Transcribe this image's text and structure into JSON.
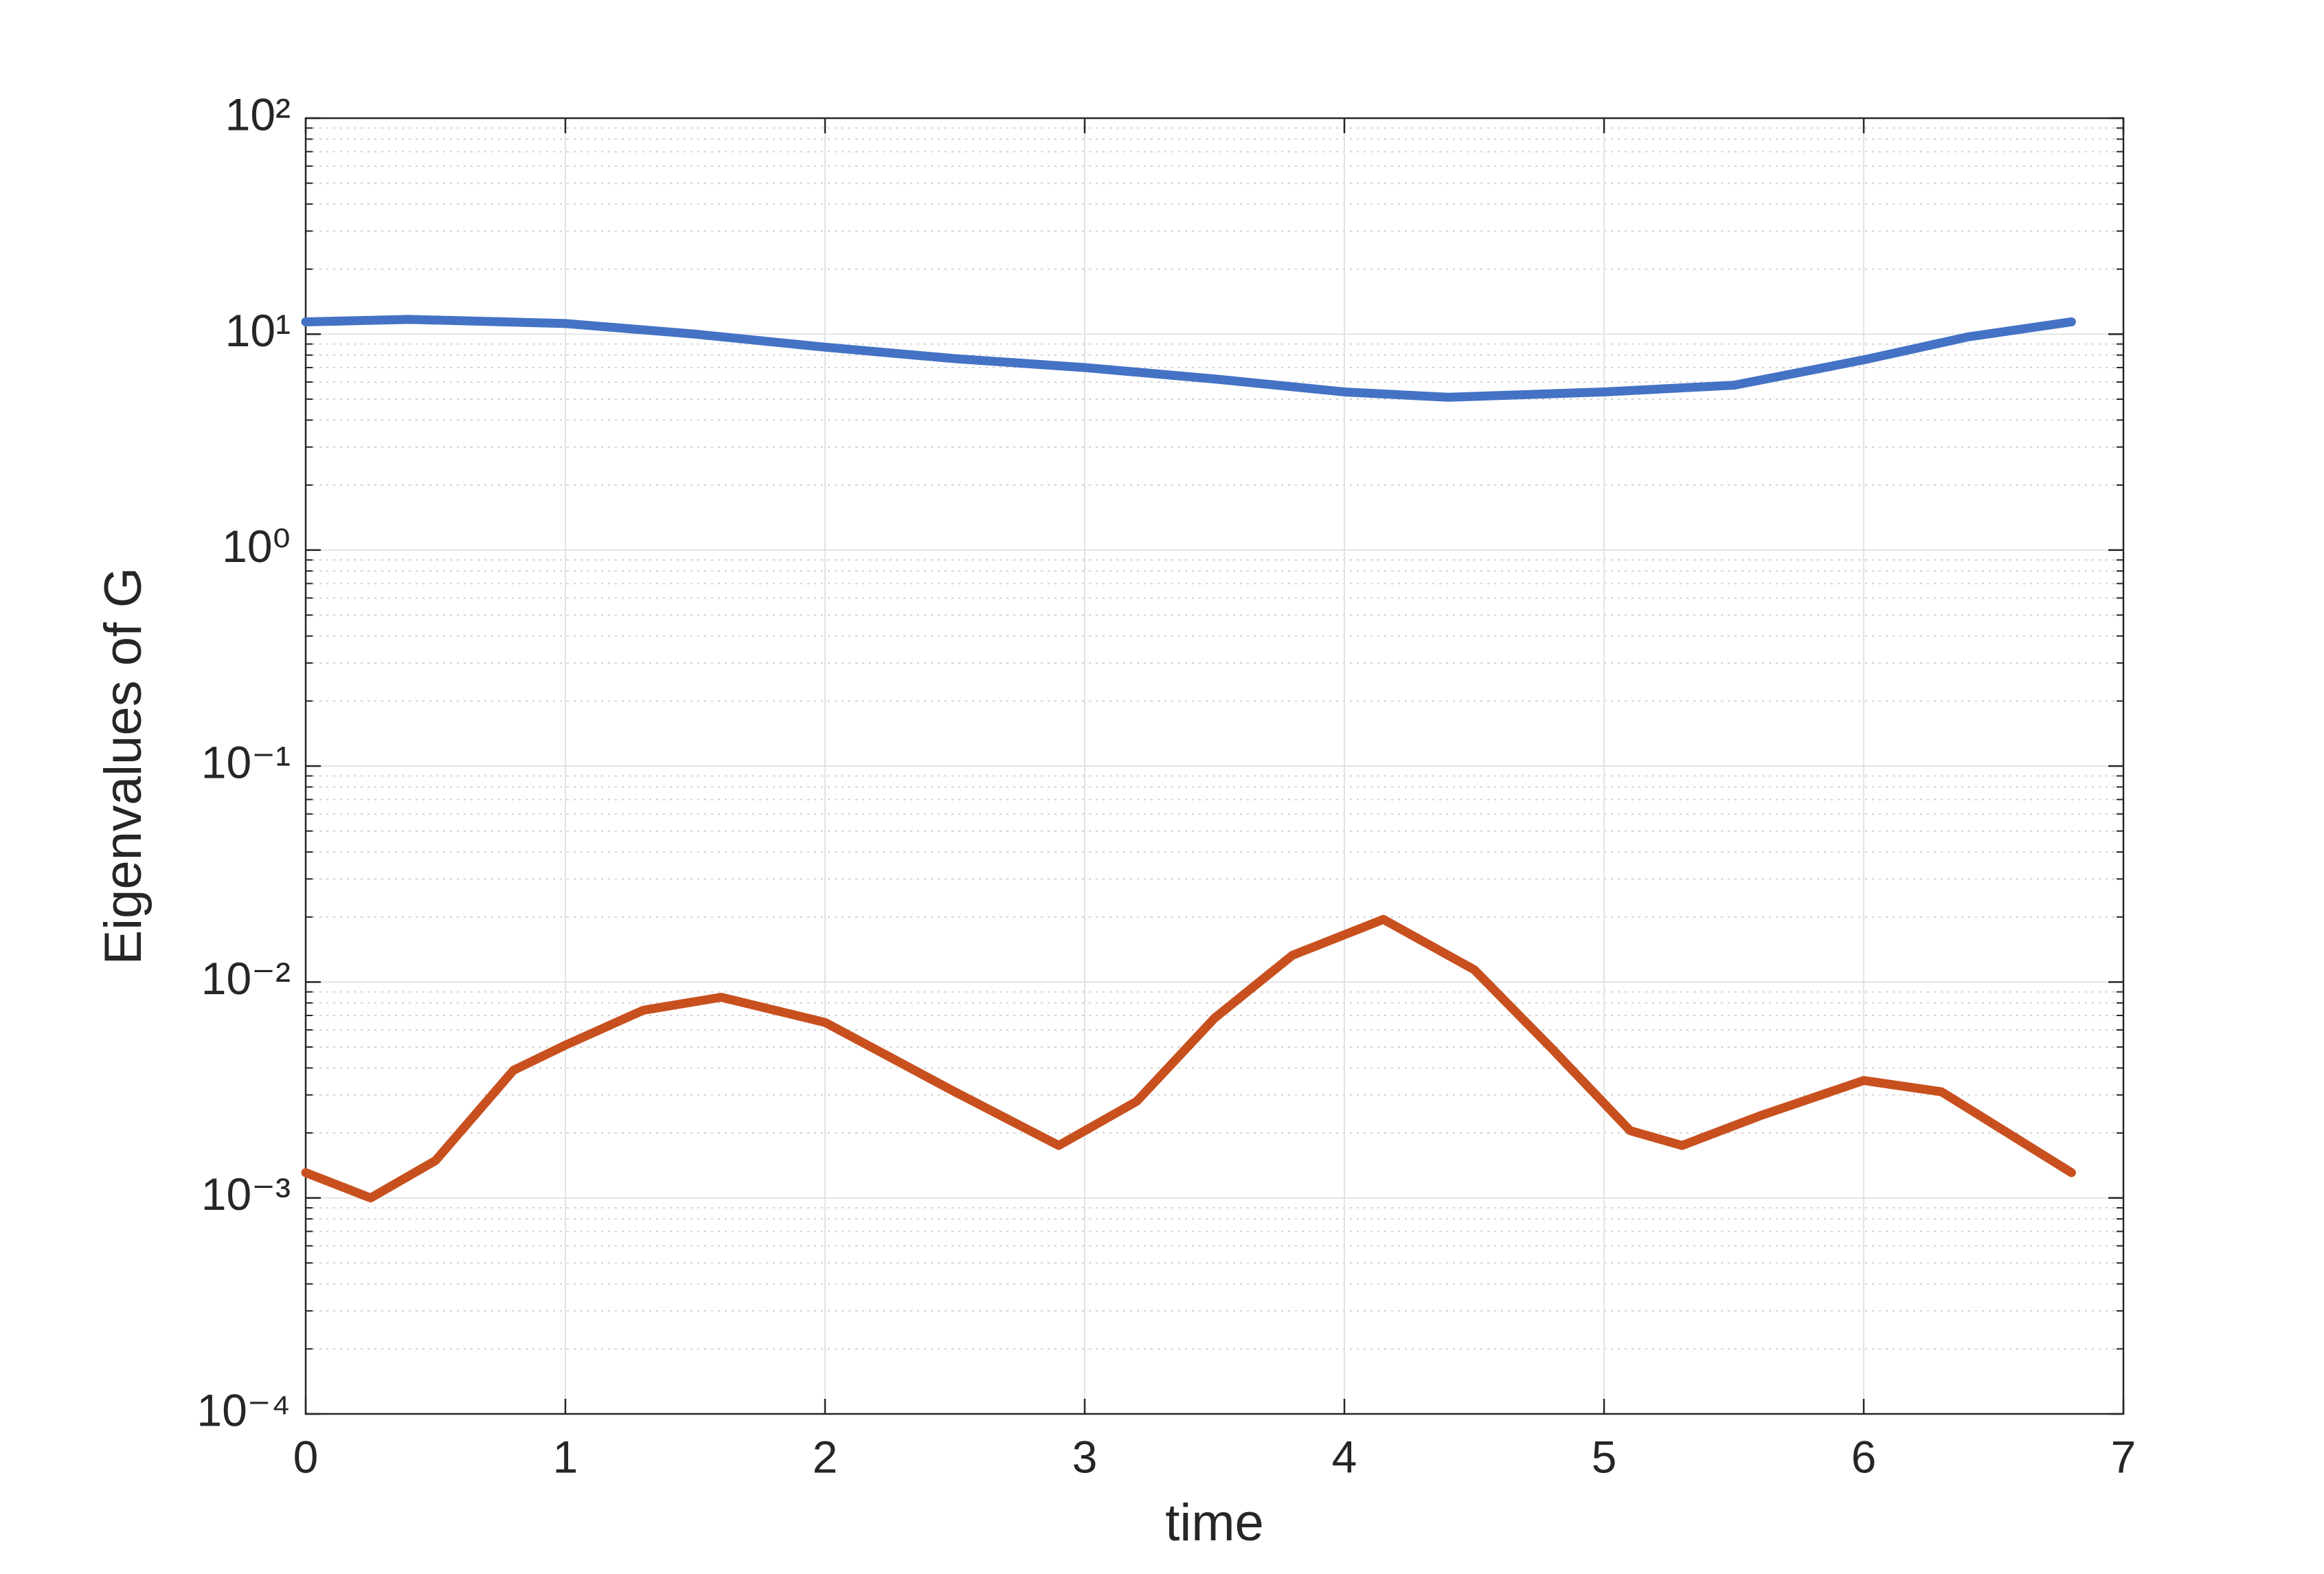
{
  "chart_data": {
    "type": "line",
    "log_y": true,
    "grid": true,
    "x_label": "time",
    "y_label": "Eigenvalues of G",
    "xlim": [
      0,
      7
    ],
    "xticks": [
      0,
      1,
      2,
      3,
      4,
      5,
      6,
      7
    ],
    "ylim": [
      0.0001,
      100
    ],
    "yticks": [
      {
        "value": 0.0001,
        "label": "10⁻⁴"
      },
      {
        "value": 0.001,
        "label": "10⁻³"
      },
      {
        "value": 0.01,
        "label": "10⁻²"
      },
      {
        "value": 0.1,
        "label": "10⁻¹"
      },
      {
        "value": 1,
        "label": "10⁰"
      },
      {
        "value": 10,
        "label": "10¹"
      },
      {
        "value": 100,
        "label": "10²"
      }
    ],
    "series": [
      {
        "color": "#4472c4",
        "x": [
          0,
          0.4,
          1,
          1.5,
          2,
          2.5,
          3,
          3.5,
          4,
          4.4,
          5,
          5.5,
          6,
          6.4,
          6.8
        ],
        "values": [
          11.4,
          11.7,
          11.2,
          10,
          8.7,
          7.7,
          7.0,
          6.2,
          5.4,
          5.1,
          5.4,
          5.8,
          7.6,
          9.7,
          11.4
        ]
      },
      {
        "color": "#c8501e",
        "x": [
          0,
          0.25,
          0.5,
          0.8,
          1,
          1.3,
          1.6,
          2,
          2.5,
          2.9,
          3.2,
          3.5,
          3.8,
          4.15,
          4.5,
          4.8,
          5.1,
          5.3,
          5.6,
          6,
          6.3,
          6.8
        ],
        "values": [
          0.00131,
          0.001,
          0.00149,
          0.0039,
          0.0051,
          0.0074,
          0.0085,
          0.0065,
          0.0031,
          0.00175,
          0.0028,
          0.0068,
          0.0133,
          0.0195,
          0.0114,
          0.0049,
          0.00205,
          0.00175,
          0.0024,
          0.0035,
          0.0031,
          0.00131
        ]
      }
    ]
  }
}
